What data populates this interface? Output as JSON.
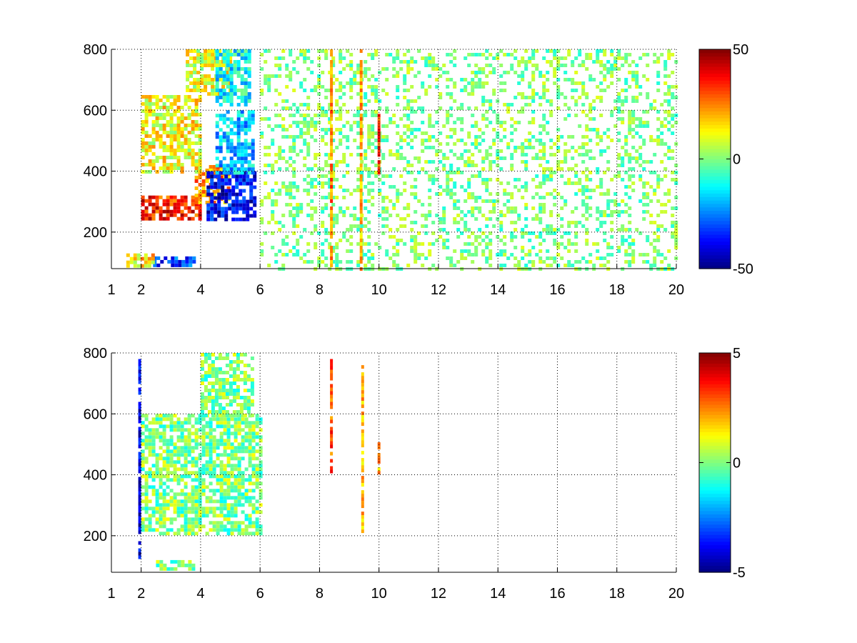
{
  "chart_data": [
    {
      "type": "heatmap",
      "title": "",
      "xlabel": "",
      "ylabel": "",
      "x_tick_labels": [
        "1",
        "2",
        "4",
        "6",
        "8",
        "10",
        "12",
        "14",
        "16",
        "18",
        "20"
      ],
      "x_ticks": [
        1,
        2,
        4,
        6,
        8,
        10,
        12,
        14,
        16,
        18,
        20
      ],
      "y_tick_labels": [
        "200",
        "400",
        "600",
        "800"
      ],
      "y_ticks": [
        200,
        400,
        600,
        800
      ],
      "xlim": [
        1,
        20
      ],
      "ylim": [
        80,
        800
      ],
      "grid": true,
      "colormap": "jet",
      "color_range": [
        -50,
        50
      ],
      "colorbar_tick_labels": [
        "50",
        "0",
        "-50"
      ],
      "colorbar_ticks": [
        50,
        0,
        -50
      ],
      "regions": [
        {
          "x": [
            2,
            4
          ],
          "y": [
            240,
            320
          ],
          "value": 35
        },
        {
          "x": [
            3.8,
            5.0
          ],
          "y": [
            300,
            420
          ],
          "value": 22
        },
        {
          "x": [
            4.2,
            5.8
          ],
          "y": [
            240,
            400
          ],
          "value": -38
        },
        {
          "x": [
            4.5,
            5.8
          ],
          "y": [
            400,
            600
          ],
          "value": -18
        },
        {
          "x": [
            2,
            4
          ],
          "y": [
            400,
            650
          ],
          "value": 12
        },
        {
          "x": [
            3.5,
            5
          ],
          "y": [
            650,
            800
          ],
          "value": 10
        },
        {
          "x": [
            4.5,
            5.6
          ],
          "y": [
            620,
            800
          ],
          "value": -12
        },
        {
          "x": [
            2.4,
            3.8
          ],
          "y": [
            90,
            120
          ],
          "value": -32
        },
        {
          "x": [
            1.5,
            2.4
          ],
          "y": [
            90,
            130
          ],
          "value": 15
        }
      ],
      "background": {
        "x": [
          6,
          20
        ],
        "values": [
          -10,
          10
        ],
        "density": 0.35
      },
      "stripes": [
        {
          "x": 8.4,
          "y": [
            80,
            800
          ],
          "value": 25
        },
        {
          "x": 9.4,
          "y": [
            80,
            800
          ],
          "value": 20
        },
        {
          "x": 10.0,
          "y": [
            400,
            600
          ],
          "value": 32
        }
      ]
    },
    {
      "type": "heatmap",
      "title": "",
      "xlabel": "",
      "ylabel": "",
      "x_tick_labels": [
        "1",
        "2",
        "4",
        "6",
        "8",
        "10",
        "12",
        "14",
        "16",
        "18",
        "20"
      ],
      "x_ticks": [
        1,
        2,
        4,
        6,
        8,
        10,
        12,
        14,
        16,
        18,
        20
      ],
      "y_tick_labels": [
        "200",
        "400",
        "600",
        "800"
      ],
      "y_ticks": [
        200,
        400,
        600,
        800
      ],
      "xlim": [
        1,
        20
      ],
      "ylim": [
        80,
        800
      ],
      "grid": true,
      "colormap": "jet",
      "color_range": [
        -5,
        5
      ],
      "colorbar_tick_labels": [
        "5",
        "0",
        "-5"
      ],
      "colorbar_ticks": [
        5,
        0,
        -5
      ],
      "regions": [
        {
          "x": [
            2.0,
            6.0
          ],
          "y": [
            210,
            600
          ],
          "value": 0
        },
        {
          "x": [
            4.0,
            5.8
          ],
          "y": [
            600,
            800
          ],
          "value": 0
        },
        {
          "x": [
            2.5,
            3.8
          ],
          "y": [
            90,
            120
          ],
          "value": 0
        }
      ],
      "background": {
        "x": [
          6,
          20
        ],
        "values": [
          0,
          0
        ],
        "density": 0.0
      },
      "stripes": [
        {
          "x": 8.4,
          "y": [
            410,
            780
          ],
          "value": 3
        },
        {
          "x": 9.45,
          "y": [
            220,
            760
          ],
          "value": 2
        },
        {
          "x": 10.0,
          "y": [
            410,
            530
          ],
          "value": 2
        },
        {
          "x": 1.95,
          "y": [
            120,
            780
          ],
          "value": -4
        }
      ]
    }
  ]
}
